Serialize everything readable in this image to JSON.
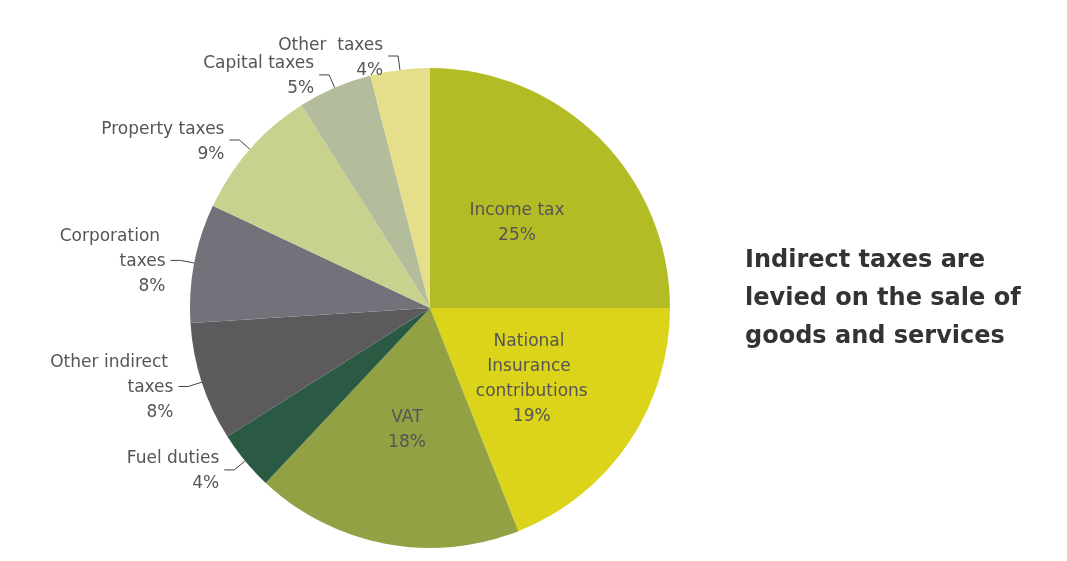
{
  "chart_data": {
    "type": "pie",
    "categories": [
      "Income tax",
      "National Insurance contributions",
      "VAT",
      "Fuel duties",
      "Other indirect taxes",
      "Corporation taxes",
      "Property taxes",
      "Capital taxes",
      "Other  taxes"
    ],
    "values": [
      25,
      19,
      18,
      4,
      8,
      8,
      9,
      5,
      4
    ],
    "value_labels": [
      "25%",
      "19%",
      "18%",
      "4%",
      "8%",
      "8%",
      "9%",
      "5%",
      "4%"
    ],
    "colors": [
      "#b4bc25",
      "#dbd41a",
      "#91a144",
      "#2b5a44",
      "#5c5a5c",
      "#75717a",
      "#c8d28e",
      "#b3bd9b",
      "#e5de8a"
    ],
    "legend": false,
    "annotations": [
      "Indirect taxes are levied on the sale of goods and services"
    ]
  }
}
